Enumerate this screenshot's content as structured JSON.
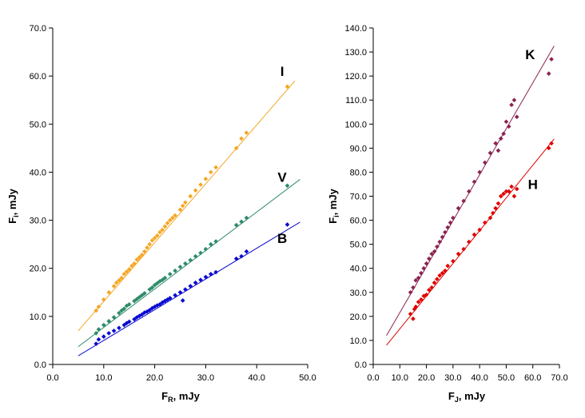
{
  "chart_data": [
    {
      "type": "scatter",
      "xlabel": {
        "main": "F",
        "sub": "R",
        "rest": ", mJy"
      },
      "ylabel": {
        "main": "F",
        "sub": "i",
        "rest": ", mJy"
      },
      "xlim": [
        0,
        50
      ],
      "ylim": [
        0,
        70
      ],
      "xticks": [
        "0.0",
        "10.0",
        "20.0",
        "30.0",
        "40.0",
        "50.0"
      ],
      "yticks": [
        "0.0",
        "10.0",
        "20.0",
        "30.0",
        "40.0",
        "50.0",
        "60.0",
        "70.0"
      ],
      "grid": false,
      "series": [
        {
          "name": "I",
          "color": "#f5a623",
          "fit": {
            "x": [
              5,
              47.5
            ],
            "y": [
              7.0,
              59.0
            ]
          },
          "label_at": [
            45,
            60
          ],
          "points": [
            [
              8.5,
              11.2
            ],
            [
              9,
              12
            ],
            [
              10,
              13.5
            ],
            [
              11,
              15
            ],
            [
              12,
              16.3
            ],
            [
              12.5,
              17
            ],
            [
              13,
              17.5
            ],
            [
              13.5,
              18
            ],
            [
              14,
              18.8
            ],
            [
              14.5,
              19.3
            ],
            [
              15,
              19.8
            ],
            [
              15.5,
              20.5
            ],
            [
              16,
              21
            ],
            [
              16.5,
              21.8
            ],
            [
              17,
              22.3
            ],
            [
              17.5,
              22.8
            ],
            [
              18,
              23.5
            ],
            [
              18.5,
              24.3
            ],
            [
              19,
              25
            ],
            [
              19.5,
              25.8
            ],
            [
              20,
              26.3
            ],
            [
              20.5,
              26.8
            ],
            [
              21,
              27.5
            ],
            [
              21.5,
              28
            ],
            [
              22,
              28.7
            ],
            [
              22.5,
              29.4
            ],
            [
              23,
              30
            ],
            [
              23.5,
              30.5
            ],
            [
              24,
              31
            ],
            [
              25,
              32.2
            ],
            [
              25.5,
              33
            ],
            [
              26,
              33.7
            ],
            [
              27,
              35
            ],
            [
              28,
              36.2
            ],
            [
              29,
              37.4
            ],
            [
              30,
              38.6
            ],
            [
              31,
              40
            ],
            [
              32,
              41
            ],
            [
              36,
              45
            ],
            [
              37,
              47
            ],
            [
              38,
              48.2
            ],
            [
              46,
              57.8
            ]
          ]
        },
        {
          "name": "V",
          "color": "#2e8b68",
          "fit": {
            "x": [
              5,
              48.5
            ],
            "y": [
              3.7,
              38.5
            ]
          },
          "label_at": [
            45,
            38
          ],
          "points": [
            [
              8.5,
              6.5
            ],
            [
              9,
              7.3
            ],
            [
              10,
              8.2
            ],
            [
              11,
              9
            ],
            [
              12,
              9.8
            ],
            [
              13,
              10.7
            ],
            [
              13.5,
              11.2
            ],
            [
              14,
              11.6
            ],
            [
              14.5,
              12.2
            ],
            [
              15,
              12.5
            ],
            [
              16,
              13.2
            ],
            [
              16.5,
              13.6
            ],
            [
              17,
              14
            ],
            [
              17.5,
              14.4
            ],
            [
              18,
              14.8
            ],
            [
              19,
              15.6
            ],
            [
              19.5,
              16
            ],
            [
              20,
              16.5
            ],
            [
              20.5,
              16.9
            ],
            [
              21,
              17.3
            ],
            [
              21.5,
              17.6
            ],
            [
              22,
              18
            ],
            [
              23,
              18.8
            ],
            [
              24,
              19.5
            ],
            [
              25,
              20.3
            ],
            [
              26,
              21
            ],
            [
              27,
              21.7
            ],
            [
              28,
              22.5
            ],
            [
              29,
              23.2
            ],
            [
              30,
              24
            ],
            [
              31,
              25
            ],
            [
              32,
              25.6
            ],
            [
              36,
              29
            ],
            [
              37,
              29.7
            ],
            [
              38,
              30.5
            ],
            [
              46,
              37.2
            ]
          ]
        },
        {
          "name": "B",
          "color": "#0a0ad0",
          "fit": {
            "x": [
              5,
              48.5
            ],
            "y": [
              1.8,
              29.6
            ]
          },
          "label_at": [
            45,
            25.3
          ],
          "points": [
            [
              8.5,
              4.3
            ],
            [
              9,
              5.2
            ],
            [
              10,
              5.8
            ],
            [
              11,
              6.5
            ],
            [
              12,
              7
            ],
            [
              13,
              7.6
            ],
            [
              14,
              8.2
            ],
            [
              14.5,
              8.6
            ],
            [
              15,
              8.9
            ],
            [
              16,
              9.4
            ],
            [
              16.5,
              9.8
            ],
            [
              17,
              10.1
            ],
            [
              17.5,
              10.4
            ],
            [
              18,
              10.8
            ],
            [
              18.5,
              11
            ],
            [
              19,
              11.3
            ],
            [
              19.5,
              11.7
            ],
            [
              20,
              12
            ],
            [
              20.5,
              12.3
            ],
            [
              21,
              12.5
            ],
            [
              21.5,
              12.9
            ],
            [
              22,
              13.2
            ],
            [
              22.5,
              13.5
            ],
            [
              23,
              13.8
            ],
            [
              24,
              14.4
            ],
            [
              25,
              15
            ],
            [
              25.5,
              13.3
            ],
            [
              26,
              15.6
            ],
            [
              27,
              16.3
            ],
            [
              28,
              17
            ],
            [
              29,
              17.6
            ],
            [
              30,
              18.2
            ],
            [
              31,
              18.8
            ],
            [
              32,
              19.2
            ],
            [
              36,
              22
            ],
            [
              37,
              22.5
            ],
            [
              38,
              23.5
            ],
            [
              46,
              29.1
            ]
          ]
        }
      ]
    },
    {
      "type": "scatter",
      "xlabel": {
        "main": "F",
        "sub": "J",
        "rest": ", mJy"
      },
      "ylabel": {
        "main": "F",
        "sub": "i",
        "rest": ", mJy"
      },
      "xlim": [
        0,
        70
      ],
      "ylim": [
        0,
        140
      ],
      "xticks": [
        "0.0",
        "10.0",
        "20.0",
        "30.0",
        "40.0",
        "50.0",
        "60.0",
        "70.0"
      ],
      "yticks": [
        "0.0",
        "10.0",
        "20.0",
        "30.0",
        "40.0",
        "50.0",
        "60.0",
        "70.0",
        "80.0",
        "90.0",
        "100.0",
        "110.0",
        "120.0",
        "130.0",
        "140.0"
      ],
      "grid": false,
      "series": [
        {
          "name": "K",
          "color": "#8b2252",
          "fit": {
            "x": [
              5,
              68
            ],
            "y": [
              12.0,
              132.5
            ]
          },
          "label_at": [
            59,
            127
          ],
          "points": [
            [
              14,
              30
            ],
            [
              15,
              32
            ],
            [
              16,
              35
            ],
            [
              17,
              36
            ],
            [
              18,
              38
            ],
            [
              19,
              40
            ],
            [
              20,
              42
            ],
            [
              21,
              44
            ],
            [
              22,
              46
            ],
            [
              23,
              47
            ],
            [
              24,
              49
            ],
            [
              25,
              51
            ],
            [
              26,
              53
            ],
            [
              27,
              55
            ],
            [
              28,
              57
            ],
            [
              29,
              59
            ],
            [
              30,
              61
            ],
            [
              32,
              65
            ],
            [
              34,
              68
            ],
            [
              36,
              72
            ],
            [
              38,
              76
            ],
            [
              40,
              80
            ],
            [
              42,
              84
            ],
            [
              44,
              88
            ],
            [
              46,
              92
            ],
            [
              47,
              89
            ],
            [
              48,
              94
            ],
            [
              49,
              96
            ],
            [
              50,
              101
            ],
            [
              51,
              99
            ],
            [
              52,
              108
            ],
            [
              53,
              110
            ],
            [
              54,
              103
            ],
            [
              66,
              121
            ],
            [
              67,
              127
            ]
          ]
        },
        {
          "name": "H",
          "color": "#e00000",
          "fit": {
            "x": [
              5,
              68
            ],
            "y": [
              8.0,
              93.8
            ]
          },
          "label_at": [
            60,
            73
          ],
          "points": [
            [
              14,
              21
            ],
            [
              15,
              19
            ],
            [
              15.5,
              23
            ],
            [
              16,
              24
            ],
            [
              17,
              26
            ],
            [
              18,
              27
            ],
            [
              19,
              28.5
            ],
            [
              20,
              29
            ],
            [
              21,
              31
            ],
            [
              22,
              32
            ],
            [
              23,
              34
            ],
            [
              24,
              35.5
            ],
            [
              25,
              37
            ],
            [
              26,
              38
            ],
            [
              27,
              39
            ],
            [
              28,
              41
            ],
            [
              30,
              43
            ],
            [
              32,
              46
            ],
            [
              34,
              48
            ],
            [
              36,
              51
            ],
            [
              38,
              54
            ],
            [
              40,
              56
            ],
            [
              42,
              59
            ],
            [
              44,
              61
            ],
            [
              45,
              63
            ],
            [
              46,
              65
            ],
            [
              47,
              67
            ],
            [
              48,
              70
            ],
            [
              49,
              71
            ],
            [
              50,
              72
            ],
            [
              51,
              72
            ],
            [
              52,
              74
            ],
            [
              53,
              70
            ],
            [
              54,
              73
            ],
            [
              66,
              90
            ],
            [
              67,
              92
            ]
          ]
        }
      ]
    }
  ]
}
